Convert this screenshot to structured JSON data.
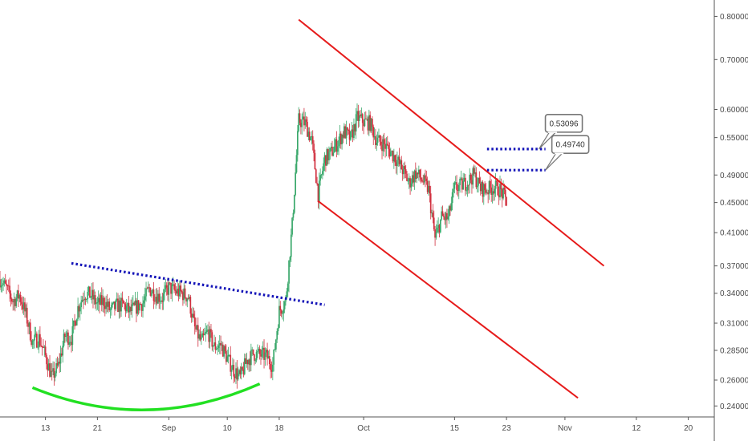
{
  "colors": {
    "background": "#ffffff",
    "up_candle": "#3aa86b",
    "down_candle": "#d1303f",
    "channel_lines": "#e61b1b",
    "dotted_lines": "#1414b8",
    "arc": "#22e022",
    "axis": "#555555",
    "callout_border": "#777777"
  },
  "chart_data": {
    "type": "candlestick",
    "title": "",
    "xlabel": "",
    "ylabel": "",
    "y_scale": "log",
    "ylim": [
      0.232,
      0.825
    ],
    "y_ticks": [
      "0.80000",
      "0.70000",
      "0.60000",
      "0.55000",
      "0.49000",
      "0.45000",
      "0.41000",
      "0.37000",
      "0.34000",
      "0.31000",
      "0.28500",
      "0.26000",
      "0.24000"
    ],
    "y_tick_values": [
      0.8,
      0.7,
      0.6,
      0.55,
      0.49,
      0.45,
      0.41,
      0.37,
      0.34,
      0.31,
      0.285,
      0.26,
      0.24
    ],
    "xlim": [
      "2018-08-06",
      "2018-11-24"
    ],
    "x_ticks": [
      {
        "label": "13",
        "date": "2018-08-13"
      },
      {
        "label": "21",
        "date": "2018-08-21"
      },
      {
        "label": "Sep",
        "date": "2018-09-01"
      },
      {
        "label": "10",
        "date": "2018-09-10"
      },
      {
        "label": "18",
        "date": "2018-09-18"
      },
      {
        "label": "Oct",
        "date": "2018-10-01"
      },
      {
        "label": "15",
        "date": "2018-10-15"
      },
      {
        "label": "23",
        "date": "2018-10-23"
      },
      {
        "label": "Nov",
        "date": "2018-11-01"
      },
      {
        "label": "12",
        "date": "2018-11-12"
      },
      {
        "label": "20",
        "date": "2018-11-20"
      }
    ],
    "price_path": [
      [
        "2018-08-06",
        0.355
      ],
      [
        "2018-08-07",
        0.345
      ],
      [
        "2018-08-08",
        0.332
      ],
      [
        "2018-08-09",
        0.338
      ],
      [
        "2018-08-10",
        0.318
      ],
      [
        "2018-08-11",
        0.292
      ],
      [
        "2018-08-12",
        0.296
      ],
      [
        "2018-08-13",
        0.28
      ],
      [
        "2018-08-14",
        0.262
      ],
      [
        "2018-08-15",
        0.272
      ],
      [
        "2018-08-16",
        0.298
      ],
      [
        "2018-08-17",
        0.296
      ],
      [
        "2018-08-18",
        0.325
      ],
      [
        "2018-08-19",
        0.34
      ],
      [
        "2018-08-20",
        0.338
      ],
      [
        "2018-08-21",
        0.328
      ],
      [
        "2018-08-22",
        0.332
      ],
      [
        "2018-08-23",
        0.322
      ],
      [
        "2018-08-24",
        0.327
      ],
      [
        "2018-08-25",
        0.328
      ],
      [
        "2018-08-26",
        0.321
      ],
      [
        "2018-08-27",
        0.326
      ],
      [
        "2018-08-28",
        0.33
      ],
      [
        "2018-08-29",
        0.345
      ],
      [
        "2018-08-30",
        0.338
      ],
      [
        "2018-08-31",
        0.335
      ],
      [
        "2018-09-01",
        0.346
      ],
      [
        "2018-09-02",
        0.342
      ],
      [
        "2018-09-03",
        0.34
      ],
      [
        "2018-09-04",
        0.336
      ],
      [
        "2018-09-05",
        0.305
      ],
      [
        "2018-09-06",
        0.292
      ],
      [
        "2018-09-07",
        0.302
      ],
      [
        "2018-09-08",
        0.288
      ],
      [
        "2018-09-09",
        0.29
      ],
      [
        "2018-09-10",
        0.278
      ],
      [
        "2018-09-11",
        0.268
      ],
      [
        "2018-09-12",
        0.262
      ],
      [
        "2018-09-13",
        0.276
      ],
      [
        "2018-09-14",
        0.282
      ],
      [
        "2018-09-15",
        0.281
      ],
      [
        "2018-09-16",
        0.28
      ],
      [
        "2018-09-17",
        0.272
      ],
      [
        "2018-09-18",
        0.322
      ],
      [
        "2018-09-19",
        0.332
      ],
      [
        "2018-09-20",
        0.42
      ],
      [
        "2018-09-21",
        0.58
      ],
      [
        "2018-09-22",
        0.575
      ],
      [
        "2018-09-23",
        0.545
      ],
      [
        "2018-09-24",
        0.462
      ],
      [
        "2018-09-25",
        0.515
      ],
      [
        "2018-09-26",
        0.525
      ],
      [
        "2018-09-27",
        0.542
      ],
      [
        "2018-09-28",
        0.56
      ],
      [
        "2018-09-29",
        0.548
      ],
      [
        "2018-09-30",
        0.585
      ],
      [
        "2018-10-01",
        0.578
      ],
      [
        "2018-10-02",
        0.575
      ],
      [
        "2018-10-03",
        0.545
      ],
      [
        "2018-10-04",
        0.54
      ],
      [
        "2018-10-05",
        0.528
      ],
      [
        "2018-10-06",
        0.515
      ],
      [
        "2018-10-07",
        0.498
      ],
      [
        "2018-10-08",
        0.478
      ],
      [
        "2018-10-09",
        0.493
      ],
      [
        "2018-10-10",
        0.483
      ],
      [
        "2018-10-11",
        0.468
      ],
      [
        "2018-10-12",
        0.402
      ],
      [
        "2018-10-13",
        0.43
      ],
      [
        "2018-10-14",
        0.428
      ],
      [
        "2018-10-15",
        0.47
      ],
      [
        "2018-10-16",
        0.474
      ],
      [
        "2018-10-17",
        0.48
      ],
      [
        "2018-10-18",
        0.49
      ],
      [
        "2018-10-19",
        0.47
      ],
      [
        "2018-10-20",
        0.468
      ],
      [
        "2018-10-21",
        0.472
      ],
      [
        "2018-10-22",
        0.468
      ],
      [
        "2018-10-23",
        0.452
      ]
    ],
    "annotations": [
      {
        "type": "channel_upper",
        "from": [
          "2018-09-21",
          0.792
        ],
        "to": [
          "2018-11-07",
          0.37
        ]
      },
      {
        "type": "channel_lower",
        "from": [
          "2018-09-24",
          0.452
        ],
        "to": [
          "2018-11-03",
          0.246
        ]
      },
      {
        "type": "dotted_trendline",
        "from": [
          "2018-08-17",
          0.373
        ],
        "to": [
          "2018-09-25",
          0.328
        ]
      },
      {
        "type": "dotted_level",
        "from": [
          "2018-10-20",
          0.53096
        ],
        "to": [
          "2018-10-29",
          0.53096
        ]
      },
      {
        "type": "dotted_level",
        "from": [
          "2018-10-20",
          0.4974
        ],
        "to": [
          "2018-10-29",
          0.4974
        ]
      },
      {
        "type": "rounded_bottom_arc",
        "from": [
          "2018-08-11",
          0.254
        ],
        "to": [
          "2018-09-15",
          0.257
        ]
      }
    ],
    "callouts": [
      {
        "text": "0.53096",
        "date": "2018-10-28",
        "value": 0.53096
      },
      {
        "text": "0.49740",
        "date": "2018-10-29",
        "value": 0.4974
      }
    ]
  }
}
